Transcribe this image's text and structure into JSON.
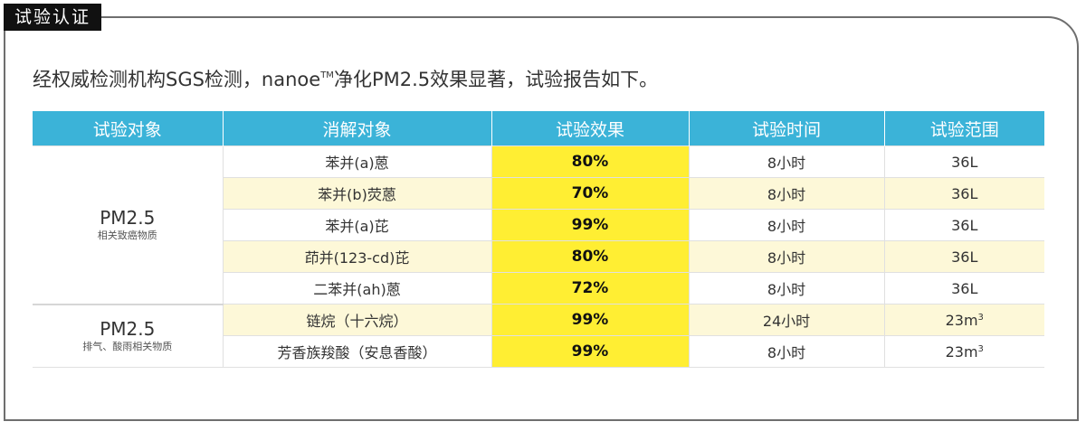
{
  "tag": "试验认证",
  "headline": {
    "before": "经权威检测机构SGS检测，nanoe",
    "tm": "TM",
    "after": "净化PM2.5效果显著，试验报告如下。"
  },
  "table": {
    "headers": [
      "试验对象",
      "消解对象",
      "试验效果",
      "试验时间",
      "试验范围"
    ],
    "groups": [
      {
        "title": "PM2.5",
        "subtitle": "相关致癌物质",
        "rows": [
          {
            "target": "苯并(a)蒽",
            "effect": "80%",
            "time": "8小时",
            "range": "36L",
            "range_sup": ""
          },
          {
            "target": "苯并(b)荧蒽",
            "effect": "70%",
            "time": "8小时",
            "range": "36L",
            "range_sup": ""
          },
          {
            "target": "苯并(a)芘",
            "effect": "99%",
            "time": "8小时",
            "range": "36L",
            "range_sup": ""
          },
          {
            "target": "茚并(123-cd)芘",
            "effect": "80%",
            "time": "8小时",
            "range": "36L",
            "range_sup": ""
          },
          {
            "target": "二苯并(ah)蒽",
            "effect": "72%",
            "time": "8小时",
            "range": "36L",
            "range_sup": ""
          }
        ]
      },
      {
        "title": "PM2.5",
        "subtitle": "排气、酸雨相关物质",
        "rows": [
          {
            "target": "链烷（十六烷）",
            "effect": "99%",
            "time": "24小时",
            "range": "23m",
            "range_sup": "3"
          },
          {
            "target": "芳香族羧酸（安息香酸）",
            "effect": "99%",
            "time": "8小时",
            "range": "23m",
            "range_sup": "3"
          }
        ]
      }
    ]
  }
}
